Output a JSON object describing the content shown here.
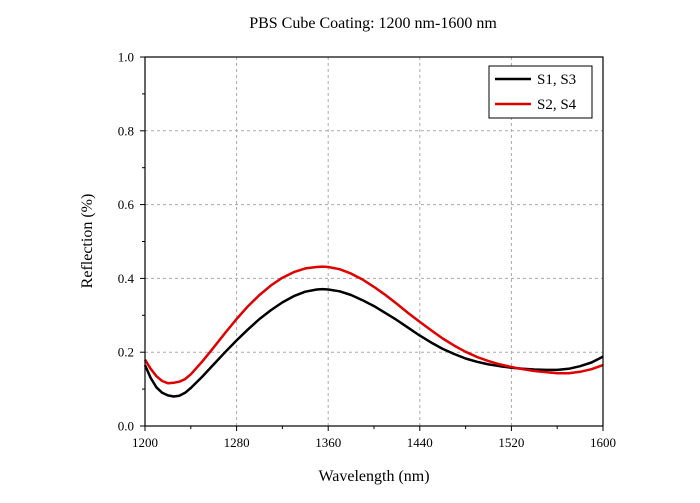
{
  "chart_data": {
    "type": "line",
    "title": "PBS Cube Coating: 1200 nm-1600 nm",
    "xlabel": "Wavelength (nm)",
    "ylabel": "Reflection (%)",
    "xlim": [
      1200,
      1600
    ],
    "ylim": [
      0.0,
      1.0
    ],
    "x_ticks": [
      1200,
      1280,
      1360,
      1440,
      1520,
      1600
    ],
    "x_tick_labels": [
      "1200",
      "1280",
      "1360",
      "1440",
      "1520",
      "1600"
    ],
    "y_ticks": [
      0.0,
      0.2,
      0.4,
      0.6,
      0.8,
      1.0
    ],
    "y_tick_labels": [
      "0.0",
      "0.2",
      "0.4",
      "0.6",
      "0.8",
      "1.0"
    ],
    "grid": true,
    "legend_position": "top-right",
    "series": [
      {
        "name": "S1, S3",
        "color": "#000000",
        "x": [
          1200,
          1205,
          1210,
          1215,
          1220,
          1225,
          1230,
          1235,
          1240,
          1250,
          1260,
          1270,
          1280,
          1290,
          1300,
          1310,
          1320,
          1330,
          1340,
          1350,
          1355,
          1360,
          1370,
          1380,
          1390,
          1400,
          1410,
          1420,
          1430,
          1440,
          1450,
          1460,
          1470,
          1480,
          1490,
          1500,
          1510,
          1520,
          1530,
          1540,
          1550,
          1560,
          1570,
          1580,
          1590,
          1600
        ],
        "y": [
          0.165,
          0.13,
          0.105,
          0.09,
          0.083,
          0.08,
          0.082,
          0.09,
          0.103,
          0.134,
          0.167,
          0.2,
          0.232,
          0.262,
          0.29,
          0.314,
          0.335,
          0.352,
          0.364,
          0.37,
          0.371,
          0.37,
          0.365,
          0.355,
          0.341,
          0.325,
          0.306,
          0.287,
          0.266,
          0.245,
          0.226,
          0.209,
          0.195,
          0.183,
          0.174,
          0.167,
          0.162,
          0.158,
          0.155,
          0.153,
          0.152,
          0.152,
          0.155,
          0.162,
          0.172,
          0.188
        ]
      },
      {
        "name": "S2, S4",
        "color": "#e00000",
        "x": [
          1200,
          1205,
          1210,
          1215,
          1220,
          1225,
          1230,
          1235,
          1240,
          1250,
          1260,
          1270,
          1280,
          1290,
          1300,
          1310,
          1320,
          1330,
          1340,
          1350,
          1355,
          1360,
          1370,
          1380,
          1390,
          1400,
          1410,
          1420,
          1430,
          1440,
          1450,
          1460,
          1470,
          1480,
          1490,
          1500,
          1510,
          1520,
          1530,
          1540,
          1550,
          1560,
          1570,
          1580,
          1590,
          1600
        ],
        "y": [
          0.18,
          0.155,
          0.135,
          0.122,
          0.116,
          0.117,
          0.12,
          0.127,
          0.14,
          0.175,
          0.213,
          0.252,
          0.29,
          0.325,
          0.355,
          0.381,
          0.402,
          0.417,
          0.427,
          0.431,
          0.432,
          0.431,
          0.425,
          0.413,
          0.397,
          0.377,
          0.355,
          0.331,
          0.306,
          0.282,
          0.259,
          0.237,
          0.218,
          0.201,
          0.187,
          0.176,
          0.167,
          0.16,
          0.154,
          0.149,
          0.146,
          0.143,
          0.143,
          0.147,
          0.154,
          0.165
        ]
      }
    ]
  }
}
